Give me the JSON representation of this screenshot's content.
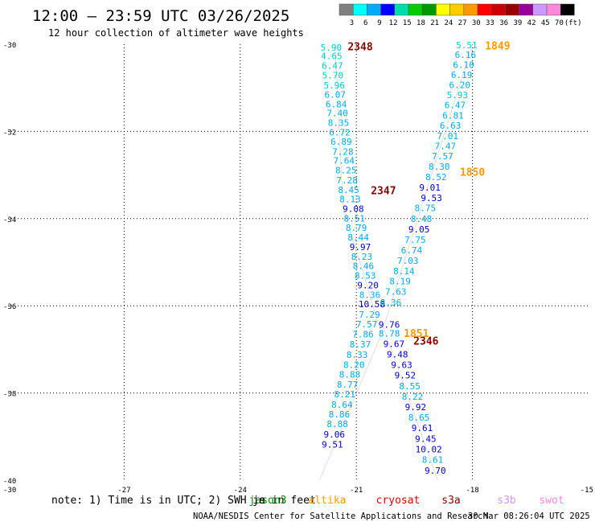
{
  "header": {
    "title": "12:00 — 23:59 UTC 03/26/2025",
    "subtitle": "12 hour collection of altimeter wave heights"
  },
  "color_scale": {
    "colors": [
      "#808080",
      "#00ffff",
      "#00aaff",
      "#0000ff",
      "#00ddaa",
      "#00cc00",
      "#009900",
      "#ffff00",
      "#ffcc00",
      "#ff9900",
      "#ff0000",
      "#cc0000",
      "#990000",
      "#990099",
      "#cc99ff",
      "#ff88dd",
      "#000000"
    ],
    "labels": [
      "3",
      "6",
      "9",
      "12",
      "15",
      "18",
      "21",
      "24",
      "27",
      "30",
      "33",
      "36",
      "39",
      "42",
      "45",
      "70",
      "(ft)"
    ]
  },
  "legend": {
    "note": "note: 1) Time is in UTC; 2) SWH is in feet",
    "satellites": [
      {
        "name": "jason3",
        "color": "#008800"
      },
      {
        "name": "altika",
        "color": "#ff9900"
      },
      {
        "name": "cryosat",
        "color": "#dd0000"
      },
      {
        "name": "s3a",
        "color": "#880000"
      },
      {
        "name": "s3b",
        "color": "#cc99ff"
      },
      {
        "name": "swot",
        "color": "#ff88dd"
      }
    ],
    "overlap_text": "je"
  },
  "footer": {
    "credit": "NOAA/NESDIS Center for Satellite Applications and Research",
    "timestamp": "30 Mar 08:26:04 UTC 2025"
  },
  "chart_data": {
    "type": "scatter",
    "title": "12:00 — 23:59 UTC 03/26/2025",
    "subtitle": "12 hour collection of altimeter wave heights",
    "xlim": [
      -30,
      -15
    ],
    "ylim": [
      -40,
      -30
    ],
    "x_ticks": [
      -30,
      -27,
      -24,
      -21,
      -18,
      -15
    ],
    "y_ticks": [
      -30,
      -32,
      -34,
      -36,
      -38,
      -40
    ],
    "grid": true,
    "time_labels": [
      {
        "text": "2348",
        "x": -20.9,
        "y": -30.05,
        "color": "#880000"
      },
      {
        "text": "1849",
        "x": -17.35,
        "y": -30.03,
        "color": "#ff9900"
      },
      {
        "text": "1850",
        "x": -18.0,
        "y": -32.92,
        "color": "#ff9900"
      },
      {
        "text": "2347",
        "x": -20.3,
        "y": -33.35,
        "color": "#880000"
      },
      {
        "text": "1851",
        "x": -19.45,
        "y": -36.62,
        "color": "#ff9900"
      },
      {
        "text": "2346",
        "x": -19.2,
        "y": -36.8,
        "color": "#880000"
      }
    ],
    "series": [
      {
        "name": "s3a",
        "track": [
          [
            -21.55,
            -30.0
          ],
          [
            -21.35,
            -33.7
          ],
          [
            -20.35,
            -36.65
          ],
          [
            -21.95,
            -40.0
          ]
        ],
        "points": [
          {
            "x": -21.65,
            "y": -30.07,
            "value": "5.90",
            "color": "#00cccc"
          },
          {
            "x": -21.64,
            "y": -30.27,
            "value": "4.65",
            "color": "#00cccc"
          },
          {
            "x": -21.62,
            "y": -30.49,
            "value": "6.47",
            "color": "#00cccc"
          },
          {
            "x": -21.61,
            "y": -30.71,
            "value": "5.70",
            "color": "#00cccc"
          },
          {
            "x": -21.57,
            "y": -30.94,
            "value": "5.96",
            "color": "#00cccc"
          },
          {
            "x": -21.55,
            "y": -31.15,
            "value": "6.07",
            "color": "#00aaee"
          },
          {
            "x": -21.52,
            "y": -31.37,
            "value": "6.84",
            "color": "#00aaee"
          },
          {
            "x": -21.49,
            "y": -31.58,
            "value": "7.40",
            "color": "#00aaee"
          },
          {
            "x": -21.46,
            "y": -31.8,
            "value": "8.35",
            "color": "#00aaee"
          },
          {
            "x": -21.43,
            "y": -32.02,
            "value": "6.72",
            "color": "#00aaee"
          },
          {
            "x": -21.39,
            "y": -32.23,
            "value": "6.89",
            "color": "#00aaee"
          },
          {
            "x": -21.35,
            "y": -32.46,
            "value": "7.28",
            "color": "#00aaee"
          },
          {
            "x": -21.32,
            "y": -32.67,
            "value": "7.64",
            "color": "#00aaee"
          },
          {
            "x": -21.27,
            "y": -32.89,
            "value": "8.25",
            "color": "#00aaee"
          },
          {
            "x": -21.24,
            "y": -33.12,
            "value": "7.28",
            "color": "#00aaee"
          },
          {
            "x": -21.2,
            "y": -33.34,
            "value": "8.45",
            "color": "#00aaee"
          },
          {
            "x": -21.16,
            "y": -33.55,
            "value": "8.13",
            "color": "#00aaee"
          },
          {
            "x": -21.08,
            "y": -33.77,
            "value": "9.08",
            "color": "#0000cc"
          },
          {
            "x": -21.05,
            "y": -33.99,
            "value": "8.51",
            "color": "#00aaee"
          },
          {
            "x": -21.0,
            "y": -34.21,
            "value": "8.79",
            "color": "#00aaee"
          },
          {
            "x": -20.95,
            "y": -34.43,
            "value": "8.44",
            "color": "#00aaee"
          },
          {
            "x": -20.9,
            "y": -34.65,
            "value": "9.97",
            "color": "#0000cc"
          },
          {
            "x": -20.86,
            "y": -34.87,
            "value": "8.23",
            "color": "#00aaee"
          },
          {
            "x": -20.82,
            "y": -35.08,
            "value": "8.46",
            "color": "#00aaee"
          },
          {
            "x": -20.77,
            "y": -35.3,
            "value": "8.53",
            "color": "#00aaee"
          },
          {
            "x": -20.7,
            "y": -35.53,
            "value": "9.20",
            "color": "#0000cc"
          },
          {
            "x": -20.65,
            "y": -35.75,
            "value": "8.36",
            "color": "#00aaee"
          },
          {
            "x": -20.6,
            "y": -35.96,
            "value": "10.58",
            "color": "#0000cc"
          },
          {
            "x": -20.66,
            "y": -36.2,
            "value": "7.29",
            "color": "#00aaee"
          },
          {
            "x": -20.73,
            "y": -36.42,
            "value": "7.57",
            "color": "#00aaee"
          },
          {
            "x": -20.83,
            "y": -36.65,
            "value": "7.86",
            "color": "#00aaee"
          },
          {
            "x": -20.9,
            "y": -36.88,
            "value": "8.37",
            "color": "#00aaee"
          },
          {
            "x": -20.98,
            "y": -37.12,
            "value": "8.33",
            "color": "#00aaee"
          },
          {
            "x": -21.06,
            "y": -37.35,
            "value": "8.20",
            "color": "#00aaee"
          },
          {
            "x": -21.17,
            "y": -37.57,
            "value": "8.88",
            "color": "#00aaee"
          },
          {
            "x": -21.23,
            "y": -37.8,
            "value": "8.77",
            "color": "#00aaee"
          },
          {
            "x": -21.3,
            "y": -38.03,
            "value": "8.21",
            "color": "#00aaee"
          },
          {
            "x": -21.37,
            "y": -38.27,
            "value": "8.64",
            "color": "#00aaee"
          },
          {
            "x": -21.44,
            "y": -38.49,
            "value": "8.86",
            "color": "#00aaee"
          },
          {
            "x": -21.49,
            "y": -38.71,
            "value": "8.88",
            "color": "#00aaee"
          },
          {
            "x": -21.57,
            "y": -38.95,
            "value": "9.06",
            "color": "#0000cc"
          },
          {
            "x": -21.62,
            "y": -39.18,
            "value": "9.51",
            "color": "#0000cc"
          }
        ]
      },
      {
        "name": "altika",
        "track": [
          [
            -18.0,
            -30.0
          ],
          [
            -20.3,
            -36.5
          ],
          [
            -18.9,
            -40.0
          ]
        ],
        "points": [
          {
            "x": -18.15,
            "y": -30.02,
            "value": "5.51",
            "color": "#00cccc"
          },
          {
            "x": -18.18,
            "y": -30.24,
            "value": "6.16",
            "color": "#00aaee"
          },
          {
            "x": -18.23,
            "y": -30.47,
            "value": "6.10",
            "color": "#00aaee"
          },
          {
            "x": -18.28,
            "y": -30.7,
            "value": "6.19",
            "color": "#00aaee"
          },
          {
            "x": -18.33,
            "y": -30.93,
            "value": "6.20",
            "color": "#00aaee"
          },
          {
            "x": -18.39,
            "y": -31.16,
            "value": "5.93",
            "color": "#00cccc"
          },
          {
            "x": -18.45,
            "y": -31.39,
            "value": "6.47",
            "color": "#00aaee"
          },
          {
            "x": -18.5,
            "y": -31.63,
            "value": "6.81",
            "color": "#00aaee"
          },
          {
            "x": -18.57,
            "y": -31.86,
            "value": "6.63",
            "color": "#00aaee"
          },
          {
            "x": -18.64,
            "y": -32.1,
            "value": "7.01",
            "color": "#00aaee"
          },
          {
            "x": -18.7,
            "y": -32.33,
            "value": "7.47",
            "color": "#00aaee"
          },
          {
            "x": -18.77,
            "y": -32.56,
            "value": "7.57",
            "color": "#00aaee"
          },
          {
            "x": -18.86,
            "y": -32.8,
            "value": "8.30",
            "color": "#00aaee"
          },
          {
            "x": -18.94,
            "y": -33.04,
            "value": "8.52",
            "color": "#00aaee"
          },
          {
            "x": -19.1,
            "y": -33.28,
            "value": "9.01",
            "color": "#0000cc"
          },
          {
            "x": -19.06,
            "y": -33.52,
            "value": "9.53",
            "color": "#0000cc"
          },
          {
            "x": -19.22,
            "y": -33.75,
            "value": "8.75",
            "color": "#00aaee"
          },
          {
            "x": -19.32,
            "y": -34.0,
            "value": "8.48",
            "color": "#00aaee"
          },
          {
            "x": -19.38,
            "y": -34.24,
            "value": "9.05",
            "color": "#0000cc"
          },
          {
            "x": -19.48,
            "y": -34.48,
            "value": "7.75",
            "color": "#00aaee"
          },
          {
            "x": -19.57,
            "y": -34.72,
            "value": "6.74",
            "color": "#00aaee"
          },
          {
            "x": -19.67,
            "y": -34.96,
            "value": "7.03",
            "color": "#00aaee"
          },
          {
            "x": -19.77,
            "y": -35.2,
            "value": "8.14",
            "color": "#00aaee"
          },
          {
            "x": -19.87,
            "y": -35.43,
            "value": "8.19",
            "color": "#00aaee"
          },
          {
            "x": -19.98,
            "y": -35.67,
            "value": "7.63",
            "color": "#00aaee"
          },
          {
            "x": -20.11,
            "y": -35.92,
            "value": "8.36",
            "color": "#00aaee"
          },
          {
            "x": -20.15,
            "y": -36.43,
            "value": "9.76",
            "color": "#0000cc"
          },
          {
            "x": -20.15,
            "y": -36.63,
            "value": "8.78",
            "color": "#00aaee"
          },
          {
            "x": -20.03,
            "y": -36.87,
            "value": "9.67",
            "color": "#0000cc"
          },
          {
            "x": -19.94,
            "y": -37.11,
            "value": "9.48",
            "color": "#0000cc"
          },
          {
            "x": -19.83,
            "y": -37.35,
            "value": "9.63",
            "color": "#0000cc"
          },
          {
            "x": -19.74,
            "y": -37.59,
            "value": "9.52",
            "color": "#0000cc"
          },
          {
            "x": -19.62,
            "y": -37.84,
            "value": "8.55",
            "color": "#00aaee"
          },
          {
            "x": -19.55,
            "y": -38.08,
            "value": "8.22",
            "color": "#00aaee"
          },
          {
            "x": -19.47,
            "y": -38.32,
            "value": "9.92",
            "color": "#0000cc"
          },
          {
            "x": -19.38,
            "y": -38.56,
            "value": "8.65",
            "color": "#00aaee"
          },
          {
            "x": -19.3,
            "y": -38.8,
            "value": "9.61",
            "color": "#0000cc"
          },
          {
            "x": -19.21,
            "y": -39.05,
            "value": "9.45",
            "color": "#0000cc"
          },
          {
            "x": -19.13,
            "y": -39.29,
            "value": "10.02",
            "color": "#0000cc"
          },
          {
            "x": -19.03,
            "y": -39.53,
            "value": "8.61",
            "color": "#00aaee"
          },
          {
            "x": -18.96,
            "y": -39.78,
            "value": "9.70",
            "color": "#0000cc"
          }
        ]
      }
    ]
  }
}
